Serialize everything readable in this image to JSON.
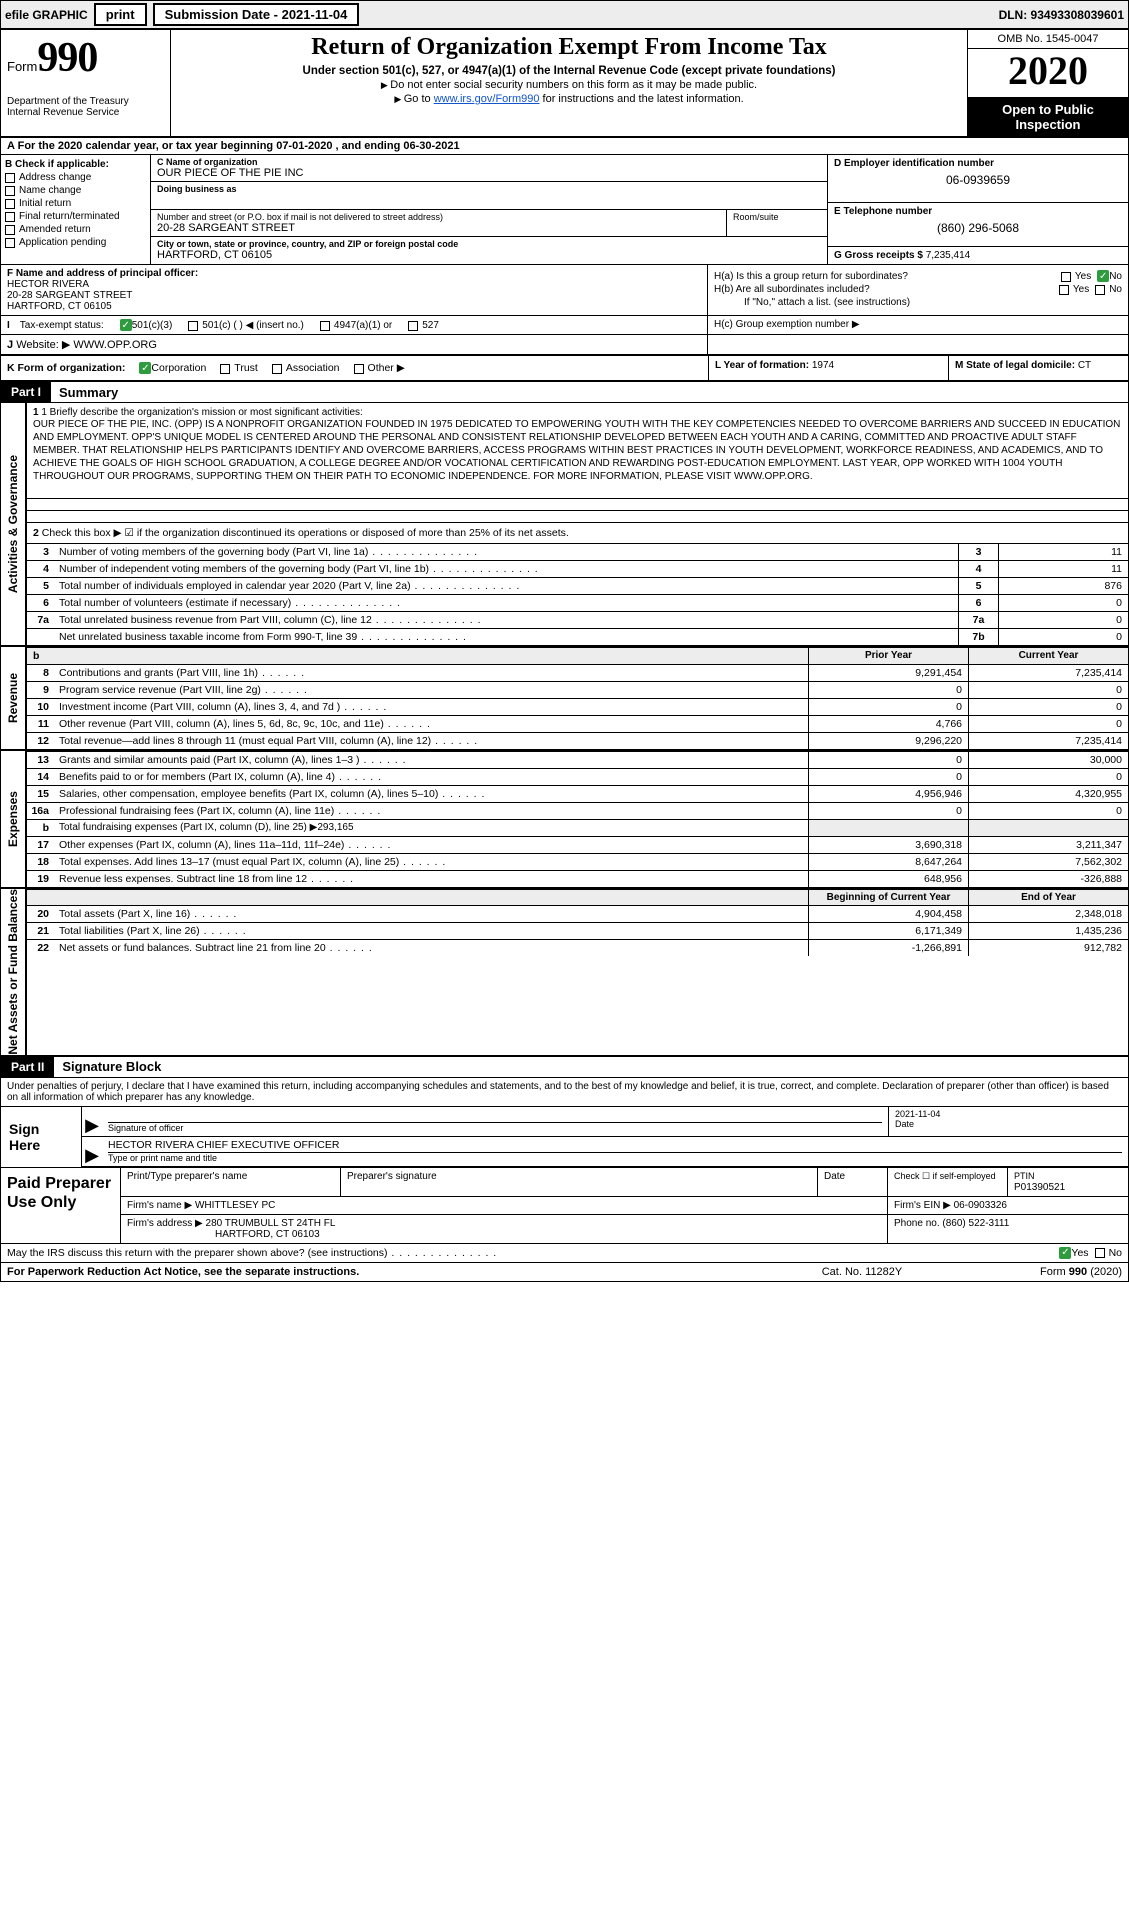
{
  "topbar": {
    "efile": "efile GRAPHIC",
    "print": "print",
    "sub_label": "Submission Date - 2021-11-04",
    "dln": "DLN: 93493308039601"
  },
  "header": {
    "form_word": "Form",
    "form_num": "990",
    "dept": "Department of the Treasury\nInternal Revenue Service",
    "title": "Return of Organization Exempt From Income Tax",
    "sub1": "Under section 501(c), 527, or 4947(a)(1) of the Internal Revenue Code (except private foundations)",
    "sub2": "Do not enter social security numbers on this form as it may be made public.",
    "sub3_pre": "Go to ",
    "sub3_link": "www.irs.gov/Form990",
    "sub3_post": " for instructions and the latest information.",
    "omb": "OMB No. 1545-0047",
    "year": "2020",
    "inspect": "Open to Public Inspection"
  },
  "cal": "For the 2020 calendar year, or tax year beginning 07-01-2020    , and ending 06-30-2021",
  "B": {
    "label": "B Check if applicable:",
    "items": [
      "Address change",
      "Name change",
      "Initial return",
      "Final return/terminated",
      "Amended return",
      "Application pending"
    ]
  },
  "C": {
    "name_lbl": "C Name of organization",
    "name": "OUR PIECE OF THE PIE INC",
    "dba_lbl": "Doing business as",
    "dba": "",
    "addr_lbl": "Number and street (or P.O. box if mail is not delivered to street address)",
    "addr": "20-28 SARGEANT STREET",
    "room_lbl": "Room/suite",
    "city_lbl": "City or town, state or province, country, and ZIP or foreign postal code",
    "city": "HARTFORD, CT  06105"
  },
  "D": {
    "ein_lbl": "D Employer identification number",
    "ein": "06-0939659",
    "phone_lbl": "E Telephone number",
    "phone": "(860) 296-5068",
    "gross_lbl": "G Gross receipts $",
    "gross": "7,235,414"
  },
  "F": {
    "lbl": "F  Name and address of principal officer:",
    "name": "HECTOR RIVERA",
    "addr1": "20-28 SARGEANT STREET",
    "addr2": "HARTFORD, CT  06105"
  },
  "H": {
    "a": "H(a)  Is this a group return for subordinates?",
    "b": "H(b)  Are all subordinates included?",
    "b_note": "If \"No,\" attach a list. (see instructions)",
    "c": "H(c)  Group exemption number ▶",
    "yes": "Yes",
    "no": "No"
  },
  "I": {
    "lbl": "Tax-exempt status:",
    "o1": "501(c)(3)",
    "o2": "501(c) (   ) ◀ (insert no.)",
    "o3": "4947(a)(1) or",
    "o4": "527"
  },
  "J": {
    "lbl": "Website: ▶",
    "val": "WWW.OPP.ORG"
  },
  "K": {
    "lbl": "K Form of organization:",
    "o1": "Corporation",
    "o2": "Trust",
    "o3": "Association",
    "o4": "Other ▶",
    "L_lbl": "L Year of formation:",
    "L_val": "1974",
    "M_lbl": "M State of legal domicile:",
    "M_val": "CT"
  },
  "partI": {
    "label": "Part I",
    "title": "Summary"
  },
  "summary": {
    "l1_lbl": "1  Briefly describe the organization's mission or most significant activities:",
    "l1_txt": "OUR PIECE OF THE PIE, INC. (OPP) IS A NONPROFIT ORGANIZATION FOUNDED IN 1975 DEDICATED TO EMPOWERING YOUTH WITH THE KEY COMPETENCIES NEEDED TO OVERCOME BARRIERS AND SUCCEED IN EDUCATION AND EMPLOYMENT. OPP'S UNIQUE MODEL IS CENTERED AROUND THE PERSONAL AND CONSISTENT RELATIONSHIP DEVELOPED BETWEEN EACH YOUTH AND A CARING, COMMITTED AND PROACTIVE ADULT STAFF MEMBER. THAT RELATIONSHIP HELPS PARTICIPANTS IDENTIFY AND OVERCOME BARRIERS, ACCESS PROGRAMS WITHIN BEST PRACTICES IN YOUTH DEVELOPMENT, WORKFORCE READINESS, AND ACADEMICS, AND TO ACHIEVE THE GOALS OF HIGH SCHOOL GRADUATION, A COLLEGE DEGREE AND/OR VOCATIONAL CERTIFICATION AND REWARDING POST-EDUCATION EMPLOYMENT. LAST YEAR, OPP WORKED WITH 1004 YOUTH THROUGHOUT OUR PROGRAMS, SUPPORTING THEM ON THEIR PATH TO ECONOMIC INDEPENDENCE. FOR MORE INFORMATION, PLEASE VISIT WWW.OPP.ORG.",
    "l2": "Check this box ▶ ☑ if the organization discontinued its operations or disposed of more than 25% of its net assets.",
    "rows": [
      {
        "n": "3",
        "d": "Number of voting members of the governing body (Part VI, line 1a)",
        "c": "3",
        "v": "11"
      },
      {
        "n": "4",
        "d": "Number of independent voting members of the governing body (Part VI, line 1b)",
        "c": "4",
        "v": "11"
      },
      {
        "n": "5",
        "d": "Total number of individuals employed in calendar year 2020 (Part V, line 2a)",
        "c": "5",
        "v": "876"
      },
      {
        "n": "6",
        "d": "Total number of volunteers (estimate if necessary)",
        "c": "6",
        "v": "0"
      },
      {
        "n": "7a",
        "d": "Total unrelated business revenue from Part VIII, column (C), line 12",
        "c": "7a",
        "v": "0"
      },
      {
        "n": "",
        "d": "Net unrelated business taxable income from Form 990-T, line 39",
        "c": "7b",
        "v": "0"
      }
    ]
  },
  "fin_hdr": {
    "b": "b",
    "py": "Prior Year",
    "cy": "Current Year"
  },
  "revenue_tab": "Revenue",
  "expenses_tab": "Expenses",
  "netassets_tab": "Net Assets or Fund Balances",
  "activities_tab": "Activities & Governance",
  "revenue": [
    {
      "n": "8",
      "d": "Contributions and grants (Part VIII, line 1h)",
      "v1": "9,291,454",
      "v2": "7,235,414"
    },
    {
      "n": "9",
      "d": "Program service revenue (Part VIII, line 2g)",
      "v1": "0",
      "v2": "0"
    },
    {
      "n": "10",
      "d": "Investment income (Part VIII, column (A), lines 3, 4, and 7d )",
      "v1": "0",
      "v2": "0"
    },
    {
      "n": "11",
      "d": "Other revenue (Part VIII, column (A), lines 5, 6d, 8c, 9c, 10c, and 11e)",
      "v1": "4,766",
      "v2": "0"
    },
    {
      "n": "12",
      "d": "Total revenue—add lines 8 through 11 (must equal Part VIII, column (A), line 12)",
      "v1": "9,296,220",
      "v2": "7,235,414"
    }
  ],
  "expenses": [
    {
      "n": "13",
      "d": "Grants and similar amounts paid (Part IX, column (A), lines 1–3 )",
      "v1": "0",
      "v2": "30,000"
    },
    {
      "n": "14",
      "d": "Benefits paid to or for members (Part IX, column (A), line 4)",
      "v1": "0",
      "v2": "0"
    },
    {
      "n": "15",
      "d": "Salaries, other compensation, employee benefits (Part IX, column (A), lines 5–10)",
      "v1": "4,956,946",
      "v2": "4,320,955"
    },
    {
      "n": "16a",
      "d": "Professional fundraising fees (Part IX, column (A), line 11e)",
      "v1": "0",
      "v2": "0"
    }
  ],
  "l16b": {
    "n": "b",
    "d": "Total fundraising expenses (Part IX, column (D), line 25) ▶293,165"
  },
  "expenses2": [
    {
      "n": "17",
      "d": "Other expenses (Part IX, column (A), lines 11a–11d, 11f–24e)",
      "v1": "3,690,318",
      "v2": "3,211,347"
    },
    {
      "n": "18",
      "d": "Total expenses. Add lines 13–17 (must equal Part IX, column (A), line 25)",
      "v1": "8,647,264",
      "v2": "7,562,302"
    },
    {
      "n": "19",
      "d": "Revenue less expenses. Subtract line 18 from line 12",
      "v1": "648,956",
      "v2": "-326,888"
    }
  ],
  "na_hdr": {
    "py": "Beginning of Current Year",
    "cy": "End of Year"
  },
  "netassets": [
    {
      "n": "20",
      "d": "Total assets (Part X, line 16)",
      "v1": "4,904,458",
      "v2": "2,348,018"
    },
    {
      "n": "21",
      "d": "Total liabilities (Part X, line 26)",
      "v1": "6,171,349",
      "v2": "1,435,236"
    },
    {
      "n": "22",
      "d": "Net assets or fund balances. Subtract line 21 from line 20",
      "v1": "-1,266,891",
      "v2": "912,782"
    }
  ],
  "partII": {
    "label": "Part II",
    "title": "Signature Block"
  },
  "sig": {
    "intro": "Under penalties of perjury, I declare that I have examined this return, including accompanying schedules and statements, and to the best of my knowledge and belief, it is true, correct, and complete. Declaration of preparer (other than officer) is based on all information of which preparer has any knowledge.",
    "sign_here": "Sign Here",
    "sig_lbl": "Signature of officer",
    "date_lbl": "Date",
    "date_val": "2021-11-04",
    "name": "HECTOR RIVERA  CHIEF EXECUTIVE OFFICER",
    "name_lbl": "Type or print name and title"
  },
  "paid": {
    "title": "Paid Preparer Use Only",
    "h1": "Print/Type preparer's name",
    "h2": "Preparer's signature",
    "h3": "Date",
    "h4": "Check ☐ if self-employed",
    "h5_lbl": "PTIN",
    "h5": "P01390521",
    "firm_lbl": "Firm's name    ▶",
    "firm": "WHITTLESEY PC",
    "ein_lbl": "Firm's EIN ▶",
    "ein": "06-0903326",
    "addr_lbl": "Firm's address ▶",
    "addr1": "280 TRUMBULL ST 24TH FL",
    "addr2": "HARTFORD, CT  06103",
    "phone_lbl": "Phone no.",
    "phone": "(860) 522-3111"
  },
  "discuss": {
    "q": "May the IRS discuss this return with the preparer shown above? (see instructions)",
    "yes": "Yes",
    "no": "No"
  },
  "footer": {
    "l": "For Paperwork Reduction Act Notice, see the separate instructions.",
    "c": "Cat. No. 11282Y",
    "r": "Form 990 (2020)"
  }
}
